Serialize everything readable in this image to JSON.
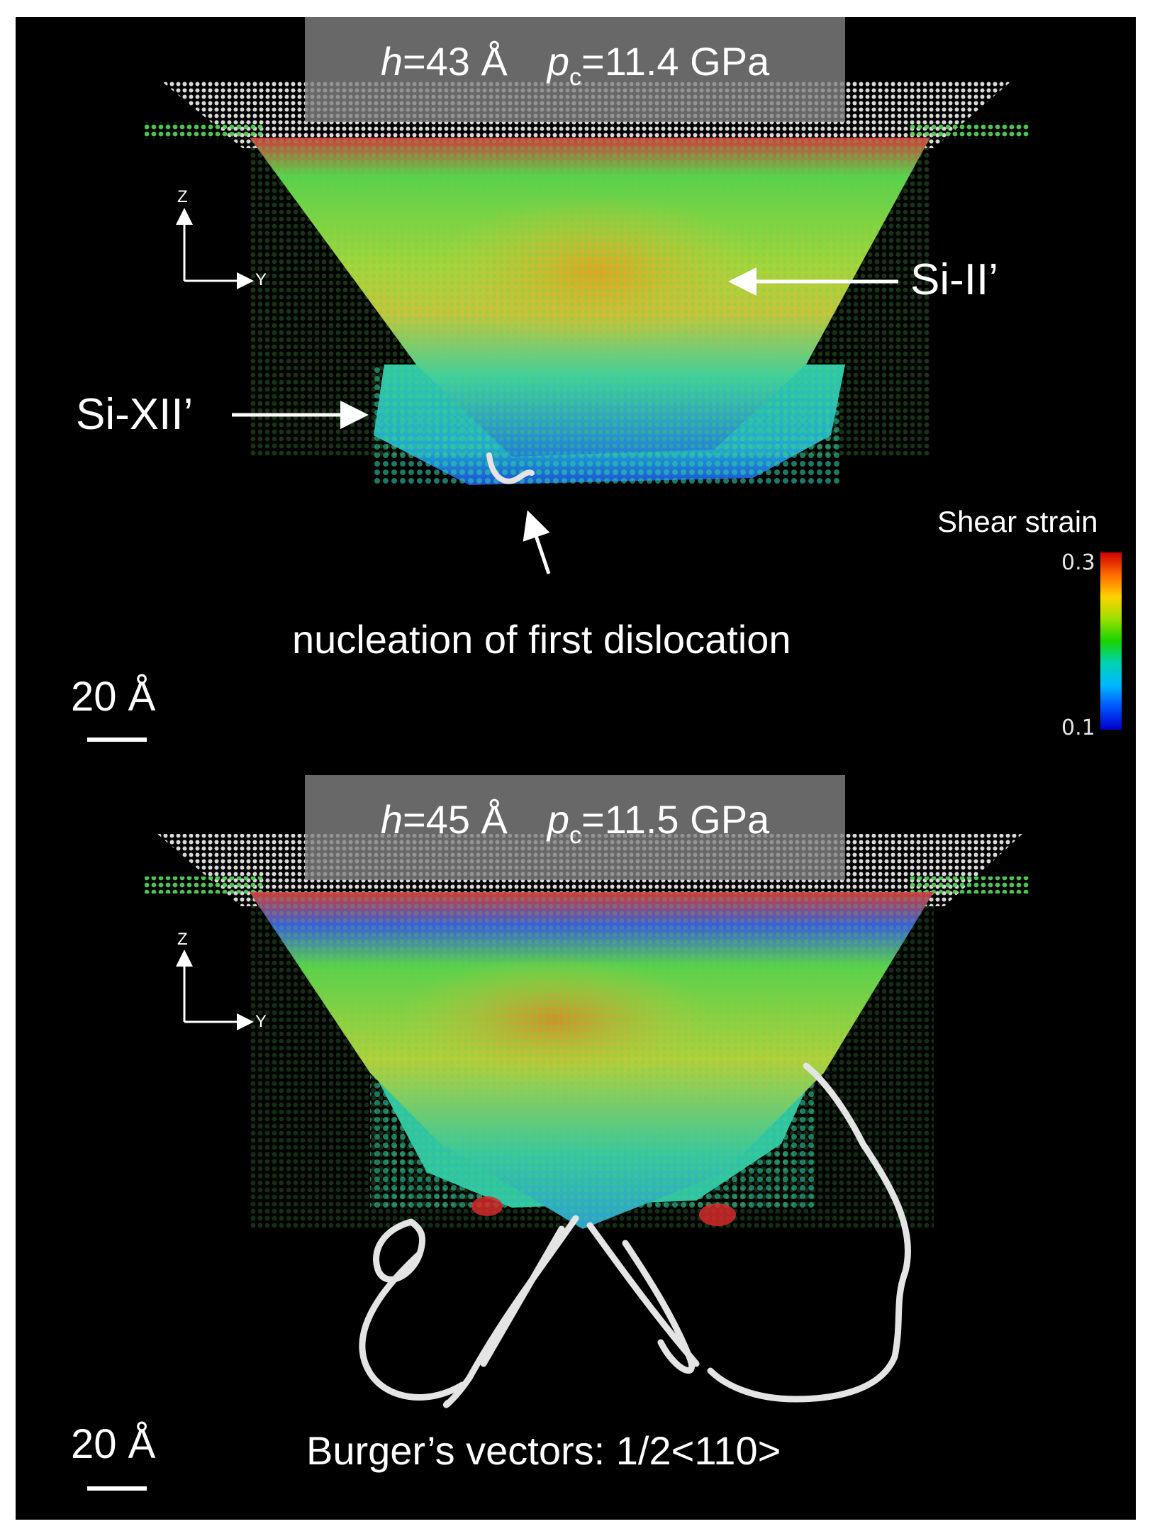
{
  "top_panel": {
    "header": {
      "h_label": "h",
      "h_value": "=43 Å",
      "p_label": "p",
      "p_sub": "c",
      "p_value": "=11.4 GPa"
    },
    "axis_z": "Z",
    "axis_y": "Y",
    "label_phase_1": "Si-II’",
    "label_phase_2": "Si-XII’",
    "annotation": "nucleation of first dislocation",
    "scale_label": "20 Å",
    "colorbar": {
      "title": "Shear strain",
      "max": "0.3",
      "min": "0.1"
    }
  },
  "bottom_panel": {
    "header": {
      "h_label": "h",
      "h_value": "=45 Å",
      "p_label": "p",
      "p_sub": "c",
      "p_value": "=11.5 GPa"
    },
    "axis_z": "Z",
    "axis_y": "Y",
    "burgers_label": "Burger’s vectors: 1/2<110>",
    "scale_label": "20 Å"
  },
  "colors": {
    "background": "#000000",
    "header_overlay": "#828282",
    "text": "#ffffff",
    "dislocation": "#e4e4e4"
  }
}
